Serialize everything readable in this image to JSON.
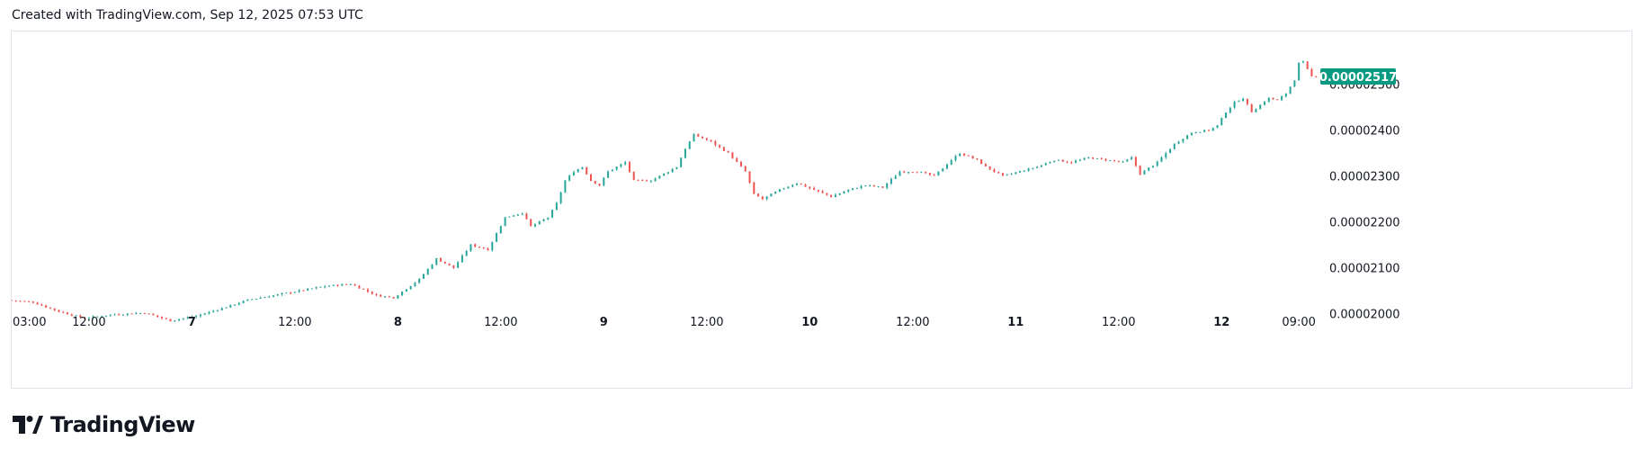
{
  "header": {
    "text": "Created with TradingView.com, Sep 12, 2025 07:53 UTC"
  },
  "branding": {
    "name": "TradingView",
    "logo_icon": "tradingview-logo-icon"
  },
  "colors": {
    "up": "#26a69a",
    "down": "#ef5350",
    "badge": "#089981",
    "text": "#131722",
    "border": "#e0e3eb"
  },
  "chart_data": {
    "type": "candlestick",
    "title": "",
    "x_ticks": [
      {
        "label": "03:00",
        "bold": false,
        "h": 0
      },
      {
        "label": "12:00",
        "bold": false,
        "h": 9
      },
      {
        "label": "7",
        "bold": true,
        "h": 21
      },
      {
        "label": "12:00",
        "bold": false,
        "h": 33
      },
      {
        "label": "8",
        "bold": true,
        "h": 45
      },
      {
        "label": "12:00",
        "bold": false,
        "h": 57
      },
      {
        "label": "9",
        "bold": true,
        "h": 69
      },
      {
        "label": "12:00",
        "bold": false,
        "h": 81
      },
      {
        "label": "10",
        "bold": true,
        "h": 93
      },
      {
        "label": "12:00",
        "bold": false,
        "h": 105
      },
      {
        "label": "11",
        "bold": true,
        "h": 117
      },
      {
        "label": "12:00",
        "bold": false,
        "h": 129
      },
      {
        "label": "12",
        "bold": true,
        "h": 141
      },
      {
        "label": "09:00",
        "bold": false,
        "h": 150
      }
    ],
    "y_ticks": [
      "0.00002000",
      "0.00002100",
      "0.00002200",
      "0.00002300",
      "0.00002400",
      "0.00002500"
    ],
    "y_range": [
      1.972e-05,
      2.615e-05
    ],
    "x_range_hours": [
      0,
      152.5
    ],
    "last_price": "0.00002517",
    "anchors": [
      [
        0,
        2.03e-05
      ],
      [
        3,
        2.025e-05
      ],
      [
        6,
        2.005e-05
      ],
      [
        9,
        1.99e-05
      ],
      [
        12,
        1.998e-05
      ],
      [
        16,
        2.002e-05
      ],
      [
        19,
        1.985e-05
      ],
      [
        22,
        1.995e-05
      ],
      [
        25,
        2.012e-05
      ],
      [
        28,
        2.03e-05
      ],
      [
        31,
        2.04e-05
      ],
      [
        34,
        2.05e-05
      ],
      [
        37,
        2.06e-05
      ],
      [
        40,
        2.065e-05
      ],
      [
        43,
        2.04e-05
      ],
      [
        45,
        2.035e-05
      ],
      [
        48,
        2.075e-05
      ],
      [
        50,
        2.12e-05
      ],
      [
        52,
        2.1e-05
      ],
      [
        54,
        2.15e-05
      ],
      [
        56,
        2.14e-05
      ],
      [
        58,
        2.21e-05
      ],
      [
        60,
        2.22e-05
      ],
      [
        61,
        2.19e-05
      ],
      [
        63,
        2.21e-05
      ],
      [
        64,
        2.24e-05
      ],
      [
        65,
        2.29e-05
      ],
      [
        66,
        2.31e-05
      ],
      [
        67,
        2.32e-05
      ],
      [
        68,
        2.29e-05
      ],
      [
        69,
        2.28e-05
      ],
      [
        70,
        2.31e-05
      ],
      [
        72,
        2.33e-05
      ],
      [
        73,
        2.29e-05
      ],
      [
        75,
        2.29e-05
      ],
      [
        77,
        2.31e-05
      ],
      [
        78,
        2.32e-05
      ],
      [
        79,
        2.36e-05
      ],
      [
        80,
        2.39e-05
      ],
      [
        82,
        2.375e-05
      ],
      [
        84,
        2.35e-05
      ],
      [
        86,
        2.31e-05
      ],
      [
        87,
        2.26e-05
      ],
      [
        88,
        2.25e-05
      ],
      [
        90,
        2.27e-05
      ],
      [
        92,
        2.285e-05
      ],
      [
        94,
        2.27e-05
      ],
      [
        96,
        2.255e-05
      ],
      [
        98,
        2.27e-05
      ],
      [
        100,
        2.28e-05
      ],
      [
        102,
        2.275e-05
      ],
      [
        104,
        2.31e-05
      ],
      [
        106,
        2.31e-05
      ],
      [
        108,
        2.3e-05
      ],
      [
        110,
        2.335e-05
      ],
      [
        111,
        2.35e-05
      ],
      [
        113,
        2.335e-05
      ],
      [
        114,
        2.32e-05
      ],
      [
        116,
        2.3e-05
      ],
      [
        118,
        2.31e-05
      ],
      [
        120,
        2.32e-05
      ],
      [
        122,
        2.335e-05
      ],
      [
        124,
        2.33e-05
      ],
      [
        126,
        2.34e-05
      ],
      [
        128,
        2.335e-05
      ],
      [
        130,
        2.33e-05
      ],
      [
        131,
        2.34e-05
      ],
      [
        132,
        2.305e-05
      ],
      [
        134,
        2.33e-05
      ],
      [
        136,
        2.37e-05
      ],
      [
        138,
        2.395e-05
      ],
      [
        140,
        2.4e-05
      ],
      [
        141,
        2.41e-05
      ],
      [
        142,
        2.44e-05
      ],
      [
        143,
        2.46e-05
      ],
      [
        144,
        2.47e-05
      ],
      [
        145,
        2.44e-05
      ],
      [
        146,
        2.455e-05
      ],
      [
        147,
        2.47e-05
      ],
      [
        148,
        2.465e-05
      ],
      [
        149,
        2.48e-05
      ],
      [
        150,
        2.51e-05
      ],
      [
        150.7,
        2.56e-05
      ],
      [
        151.2,
        2.54e-05
      ],
      [
        152,
        2.517e-05
      ]
    ]
  }
}
